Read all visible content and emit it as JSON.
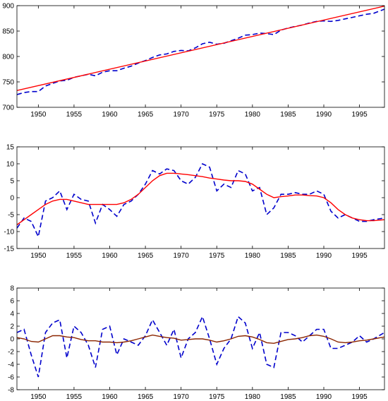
{
  "chart_data": [
    {
      "type": "line",
      "x_ticks": [
        1950,
        1955,
        1960,
        1965,
        1970,
        1975,
        1980,
        1985,
        1990,
        1995
      ],
      "y_ticks": [
        700,
        750,
        800,
        850,
        900
      ],
      "xlim": [
        1947,
        1998.5
      ],
      "ylim": [
        700,
        900
      ],
      "grid": false,
      "series": [
        {
          "style": "dashed",
          "color": "#0000cc",
          "x": [
            1947,
            1948,
            1949,
            1950,
            1951,
            1952,
            1953,
            1954,
            1955,
            1956,
            1957,
            1958,
            1959,
            1960,
            1961,
            1962,
            1963,
            1964,
            1965,
            1966,
            1967,
            1968,
            1969,
            1970,
            1971,
            1972,
            1973,
            1974,
            1975,
            1976,
            1977,
            1978,
            1979,
            1980,
            1981,
            1982,
            1983,
            1984,
            1985,
            1986,
            1987,
            1988,
            1989,
            1990,
            1991,
            1992,
            1993,
            1994,
            1995,
            1996,
            1997,
            1998.5
          ],
          "y": [
            725,
            729,
            731,
            731,
            742,
            747,
            752,
            753,
            759,
            762,
            765,
            762,
            769,
            772,
            772,
            777,
            781,
            787,
            792,
            798,
            803,
            805,
            810,
            812,
            811,
            817,
            825,
            828,
            824,
            826,
            831,
            836,
            842,
            843,
            846,
            845,
            843,
            852,
            856,
            859,
            862,
            866,
            869,
            870,
            869,
            871,
            874,
            877,
            880,
            883,
            885,
            893
          ]
        },
        {
          "style": "solid",
          "color": "#ff0000",
          "x": [
            1947,
            1998.5
          ],
          "y": [
            733,
            899
          ]
        }
      ]
    },
    {
      "type": "line",
      "x_ticks": [
        1950,
        1955,
        1960,
        1965,
        1970,
        1975,
        1980,
        1985,
        1990,
        1995
      ],
      "y_ticks": [
        -15,
        -10,
        -5,
        0,
        5,
        10,
        15
      ],
      "xlim": [
        1947,
        1998.5
      ],
      "ylim": [
        -15,
        15
      ],
      "grid": false,
      "series": [
        {
          "style": "dashed",
          "color": "#0000cc",
          "x": [
            1947,
            1948,
            1949,
            1950,
            1951,
            1952,
            1953,
            1954,
            1955,
            1956,
            1957,
            1958,
            1959,
            1960,
            1961,
            1962,
            1963,
            1964,
            1965,
            1966,
            1967,
            1968,
            1969,
            1970,
            1971,
            1972,
            1973,
            1974,
            1975,
            1976,
            1977,
            1978,
            1979,
            1980,
            1981,
            1982,
            1983,
            1984,
            1985,
            1986,
            1987,
            1988,
            1989,
            1990,
            1991,
            1992,
            1993,
            1994,
            1995,
            1996,
            1997,
            1998.5
          ],
          "y": [
            -9,
            -6,
            -7,
            -11.5,
            -1,
            0,
            2,
            -3.5,
            1,
            -0.5,
            -1,
            -7.5,
            -2,
            -3.5,
            -5.5,
            -2,
            -1,
            1,
            4,
            8,
            7,
            8.5,
            8,
            5,
            4,
            6,
            10,
            9,
            2,
            4,
            3,
            8,
            7,
            2,
            3,
            -5,
            -3,
            1,
            1,
            1.5,
            1,
            1,
            2,
            1,
            -4,
            -6,
            -5,
            -6,
            -7,
            -7,
            -6.5,
            -6
          ]
        },
        {
          "style": "solid",
          "color": "#ff0000",
          "x": [
            1947,
            1948,
            1949,
            1950,
            1951,
            1952,
            1953,
            1954,
            1955,
            1956,
            1957,
            1958,
            1959,
            1960,
            1961,
            1962,
            1963,
            1964,
            1965,
            1966,
            1967,
            1968,
            1969,
            1970,
            1971,
            1972,
            1973,
            1974,
            1975,
            1976,
            1977,
            1978,
            1979,
            1980,
            1981,
            1982,
            1983,
            1984,
            1985,
            1986,
            1987,
            1988,
            1989,
            1990,
            1991,
            1992,
            1993,
            1994,
            1995,
            1996,
            1997,
            1998.5
          ],
          "y": [
            -8,
            -6.5,
            -5,
            -3.5,
            -2,
            -1,
            -0.5,
            -0.5,
            -1,
            -1.5,
            -2,
            -2,
            -2,
            -2,
            -2,
            -1.5,
            -0.5,
            1,
            3,
            5,
            6.5,
            7.2,
            7.2,
            7,
            6.8,
            6.5,
            6.2,
            5.8,
            5.5,
            5.2,
            5,
            5,
            4.8,
            4,
            2.5,
            1,
            0,
            0.3,
            0.5,
            0.8,
            0.8,
            0.6,
            0.5,
            0,
            -1.5,
            -3.5,
            -5,
            -6,
            -6.5,
            -6.8,
            -6.8,
            -6.5
          ]
        }
      ]
    },
    {
      "type": "line",
      "x_ticks": [
        1950,
        1955,
        1960,
        1965,
        1970,
        1975,
        1980,
        1985,
        1990,
        1995
      ],
      "y_ticks": [
        -8,
        -6,
        -4,
        -2,
        0,
        2,
        4,
        6,
        8
      ],
      "xlim": [
        1947,
        1998.5
      ],
      "ylim": [
        -8,
        8
      ],
      "grid": false,
      "series": [
        {
          "style": "dashed",
          "color": "#0000cc",
          "x": [
            1947,
            1948,
            1949,
            1950,
            1951,
            1952,
            1953,
            1954,
            1955,
            1956,
            1957,
            1958,
            1959,
            1960,
            1961,
            1962,
            1963,
            1964,
            1965,
            1966,
            1967,
            1968,
            1969,
            1970,
            1971,
            1972,
            1973,
            1974,
            1975,
            1976,
            1977,
            1978,
            1979,
            1980,
            1981,
            1982,
            1983,
            1984,
            1985,
            1986,
            1987,
            1988,
            1989,
            1990,
            1991,
            1992,
            1993,
            1994,
            1995,
            1996,
            1997,
            1998.5
          ],
          "y": [
            1,
            1.5,
            -2.5,
            -6,
            1,
            2.5,
            3,
            -3,
            2,
            1,
            -1,
            -4.5,
            1.5,
            2,
            -2.5,
            0,
            -0.5,
            -1,
            0.5,
            3,
            1,
            -1,
            1.5,
            -3,
            0,
            1,
            3.5,
            0,
            -4,
            -1.5,
            0,
            3.5,
            2.5,
            -1.5,
            1,
            -4,
            -4.5,
            1,
            1,
            0.5,
            -0.5,
            0.5,
            1.5,
            1.5,
            -1.5,
            -1.5,
            -1,
            -0.5,
            0.5,
            -0.5,
            0,
            1
          ]
        },
        {
          "style": "solid",
          "color": "#8b2500",
          "x": [
            1947,
            1948,
            1949,
            1950,
            1951,
            1952,
            1953,
            1954,
            1955,
            1956,
            1957,
            1958,
            1959,
            1960,
            1961,
            1962,
            1963,
            1964,
            1965,
            1966,
            1967,
            1968,
            1969,
            1970,
            1971,
            1972,
            1973,
            1974,
            1975,
            1976,
            1977,
            1978,
            1979,
            1980,
            1981,
            1982,
            1983,
            1984,
            1985,
            1986,
            1987,
            1988,
            1989,
            1990,
            1991,
            1992,
            1993,
            1994,
            1995,
            1996,
            1997,
            1998.5
          ],
          "y": [
            0.2,
            0,
            -0.4,
            -0.5,
            0,
            0.5,
            0.5,
            0.3,
            0.2,
            -0.1,
            -0.3,
            -0.3,
            -0.5,
            -0.5,
            -0.6,
            -0.5,
            -0.3,
            0,
            0.3,
            0.6,
            0.4,
            0.2,
            0.1,
            -0.2,
            -0.1,
            0,
            0,
            -0.2,
            -0.5,
            -0.3,
            0,
            0.4,
            0.5,
            0.3,
            -0.1,
            -0.6,
            -0.7,
            -0.4,
            -0.1,
            0,
            0.2,
            0.5,
            0.6,
            0.4,
            0,
            -0.5,
            -0.6,
            -0.5,
            -0.3,
            -0.2,
            0,
            0.3
          ]
        }
      ]
    }
  ]
}
